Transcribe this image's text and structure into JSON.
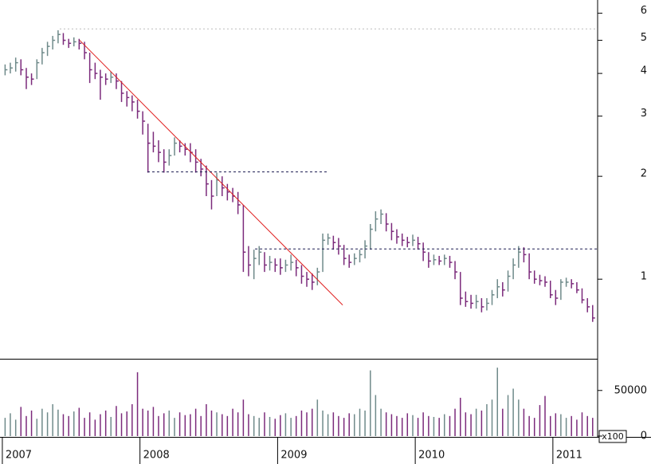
{
  "chart_data": [
    {
      "type": "ohlc",
      "log_scale": true,
      "up_color": "#6f8a8a",
      "down_color": "#7b2a7b",
      "xlim": [
        2006.983,
        2011.325
      ],
      "xticks": [
        2007,
        2008,
        2009,
        2010,
        2011
      ],
      "ylim": [
        0.585,
        6.56
      ],
      "yticks": [
        1,
        2,
        3,
        4,
        5,
        6
      ],
      "x": [
        2007.02,
        2007.058,
        2007.097,
        2007.135,
        2007.174,
        2007.212,
        2007.251,
        2007.289,
        2007.328,
        2007.366,
        2007.405,
        2007.443,
        2007.482,
        2007.52,
        2007.558,
        2007.597,
        2007.635,
        2007.674,
        2007.712,
        2007.751,
        2007.789,
        2007.828,
        2007.866,
        2007.905,
        2007.943,
        2007.982,
        2008.02,
        2008.058,
        2008.097,
        2008.135,
        2008.174,
        2008.212,
        2008.251,
        2008.289,
        2008.328,
        2008.366,
        2008.405,
        2008.443,
        2008.482,
        2008.52,
        2008.558,
        2008.597,
        2008.635,
        2008.674,
        2008.712,
        2008.751,
        2008.789,
        2008.828,
        2008.866,
        2008.905,
        2008.943,
        2008.982,
        2009.02,
        2009.058,
        2009.097,
        2009.135,
        2009.174,
        2009.212,
        2009.251,
        2009.289,
        2009.328,
        2009.366,
        2009.405,
        2009.443,
        2009.482,
        2009.52,
        2009.558,
        2009.597,
        2009.635,
        2009.674,
        2009.712,
        2009.751,
        2009.789,
        2009.828,
        2009.866,
        2009.905,
        2009.943,
        2009.982,
        2010.02,
        2010.058,
        2010.097,
        2010.135,
        2010.174,
        2010.212,
        2010.251,
        2010.289,
        2010.328,
        2010.366,
        2010.405,
        2010.443,
        2010.482,
        2010.52,
        2010.558,
        2010.597,
        2010.635,
        2010.674,
        2010.712,
        2010.751,
        2010.789,
        2010.828,
        2010.866,
        2010.905,
        2010.943,
        2010.982,
        2011.02,
        2011.058,
        2011.097,
        2011.135,
        2011.174,
        2011.212,
        2011.251,
        2011.289
      ],
      "high": [
        4.25,
        4.3,
        4.45,
        4.4,
        4.15,
        4.0,
        4.4,
        4.75,
        4.95,
        5.15,
        5.35,
        5.25,
        5.05,
        5.1,
        5.05,
        4.95,
        4.6,
        4.3,
        4.1,
        4.0,
        4.05,
        4.0,
        3.8,
        3.55,
        3.45,
        3.35,
        3.1,
        2.85,
        2.7,
        2.55,
        2.4,
        2.4,
        2.6,
        2.55,
        2.5,
        2.5,
        2.4,
        2.25,
        2.15,
        1.95,
        2.05,
        2.0,
        1.9,
        1.85,
        1.8,
        1.65,
        1.25,
        1.22,
        1.25,
        1.2,
        1.17,
        1.15,
        1.15,
        1.14,
        1.18,
        1.14,
        1.1,
        1.05,
        1.04,
        1.08,
        1.36,
        1.36,
        1.34,
        1.32,
        1.26,
        1.18,
        1.19,
        1.22,
        1.3,
        1.45,
        1.58,
        1.6,
        1.56,
        1.46,
        1.4,
        1.36,
        1.33,
        1.35,
        1.33,
        1.28,
        1.2,
        1.18,
        1.17,
        1.18,
        1.17,
        1.13,
        1.05,
        0.92,
        0.9,
        0.9,
        0.88,
        0.88,
        0.93,
        1.0,
        0.98,
        1.06,
        1.15,
        1.25,
        1.24,
        1.19,
        1.06,
        1.03,
        1.02,
        0.99,
        0.93,
        1.0,
        1.01,
        1.0,
        0.98,
        0.94,
        0.88,
        0.84
      ],
      "low": [
        3.95,
        4.0,
        4.05,
        3.95,
        3.6,
        3.7,
        3.85,
        4.25,
        4.5,
        4.7,
        4.9,
        4.85,
        4.75,
        4.8,
        4.7,
        4.4,
        3.75,
        3.85,
        3.35,
        3.7,
        3.75,
        3.6,
        3.3,
        3.2,
        3.1,
        2.95,
        2.65,
        2.05,
        2.35,
        2.2,
        2.05,
        2.15,
        2.3,
        2.35,
        2.3,
        2.2,
        2.05,
        2.0,
        1.75,
        1.6,
        1.75,
        1.75,
        1.7,
        1.68,
        1.55,
        1.05,
        1.02,
        1.0,
        1.1,
        1.05,
        1.06,
        1.05,
        1.03,
        1.05,
        1.06,
        1.02,
        0.97,
        0.95,
        0.93,
        0.96,
        1.05,
        1.26,
        1.22,
        1.18,
        1.1,
        1.08,
        1.1,
        1.12,
        1.15,
        1.22,
        1.38,
        1.45,
        1.38,
        1.3,
        1.27,
        1.25,
        1.24,
        1.25,
        1.22,
        1.13,
        1.08,
        1.1,
        1.1,
        1.1,
        1.08,
        1.0,
        0.84,
        0.83,
        0.82,
        0.82,
        0.8,
        0.81,
        0.84,
        0.88,
        0.89,
        0.92,
        1.0,
        1.08,
        1.12,
        1.0,
        0.97,
        0.96,
        0.95,
        0.88,
        0.84,
        0.87,
        0.95,
        0.94,
        0.91,
        0.85,
        0.8,
        0.75
      ],
      "close": [
        4.1,
        4.15,
        4.3,
        4.1,
        3.9,
        3.85,
        4.3,
        4.6,
        4.8,
        5.0,
        5.2,
        5.0,
        4.9,
        4.95,
        4.9,
        4.6,
        4.1,
        4.0,
        3.9,
        3.85,
        3.9,
        3.8,
        3.5,
        3.4,
        3.3,
        3.1,
        2.9,
        2.5,
        2.45,
        2.35,
        2.2,
        2.3,
        2.5,
        2.45,
        2.4,
        2.35,
        2.2,
        2.1,
        1.9,
        1.75,
        1.95,
        1.85,
        1.8,
        1.75,
        1.65,
        1.2,
        1.1,
        1.15,
        1.2,
        1.1,
        1.12,
        1.1,
        1.08,
        1.1,
        1.12,
        1.08,
        1.02,
        1.0,
        0.98,
        1.05,
        1.3,
        1.32,
        1.28,
        1.25,
        1.15,
        1.12,
        1.15,
        1.18,
        1.25,
        1.4,
        1.5,
        1.55,
        1.45,
        1.38,
        1.33,
        1.3,
        1.28,
        1.3,
        1.27,
        1.2,
        1.13,
        1.14,
        1.13,
        1.15,
        1.12,
        1.05,
        0.88,
        0.86,
        0.85,
        0.86,
        0.83,
        0.85,
        0.9,
        0.95,
        0.93,
        1.02,
        1.1,
        1.2,
        1.18,
        1.05,
        1.0,
        0.99,
        0.98,
        0.9,
        0.88,
        0.98,
        0.98,
        0.97,
        0.93,
        0.87,
        0.83,
        0.77
      ],
      "lines": [
        {
          "x": [
            2007.417,
            2011.325
          ],
          "y": [
            5.4,
            5.4
          ],
          "color": "#bbbbbb",
          "style": "dotted"
        },
        {
          "x": [
            2007.562,
            2009.473
          ],
          "y": [
            5.0,
            0.84
          ],
          "color": "#e02020",
          "style": "solid"
        },
        {
          "x": [
            2008.054,
            2009.368
          ],
          "y": [
            2.06,
            2.06
          ],
          "color": "#1a1a50",
          "style": "dashed"
        },
        {
          "x": [
            2008.836,
            2011.325
          ],
          "y": [
            1.226,
            1.226
          ],
          "color": "#1a1a50",
          "style": "dashed"
        }
      ]
    },
    {
      "type": "volume",
      "volume_unit": "x100",
      "ylim": [
        0,
        83000
      ],
      "yticks": [
        0,
        50000
      ],
      "values": [
        20000,
        25000,
        18000,
        32000,
        22000,
        28000,
        19000,
        30000,
        26000,
        35000,
        29000,
        24000,
        22000,
        27000,
        31000,
        20000,
        26000,
        18000,
        24000,
        28000,
        21000,
        33000,
        25000,
        27000,
        35000,
        70000,
        30000,
        28000,
        32000,
        22000,
        25000,
        28000,
        20000,
        26000,
        23000,
        24000,
        30000,
        22000,
        35000,
        28000,
        26000,
        24000,
        22000,
        30000,
        26000,
        40000,
        24000,
        22000,
        20000,
        26000,
        21000,
        19000,
        23000,
        25000,
        20000,
        22000,
        28000,
        26000,
        30000,
        40000,
        28000,
        24000,
        26000,
        22000,
        20000,
        25000,
        24000,
        30000,
        28000,
        72000,
        45000,
        30000,
        26000,
        24000,
        22000,
        20000,
        25000,
        23000,
        20000,
        26000,
        22000,
        21000,
        20000,
        24000,
        22000,
        30000,
        42000,
        26000,
        24000,
        30000,
        28000,
        35000,
        40000,
        75000,
        30000,
        45000,
        52000,
        40000,
        30000,
        22000,
        20000,
        34000,
        44000,
        22000,
        25000,
        24000,
        20000,
        22000,
        18000,
        26000,
        22000,
        20000
      ]
    }
  ]
}
